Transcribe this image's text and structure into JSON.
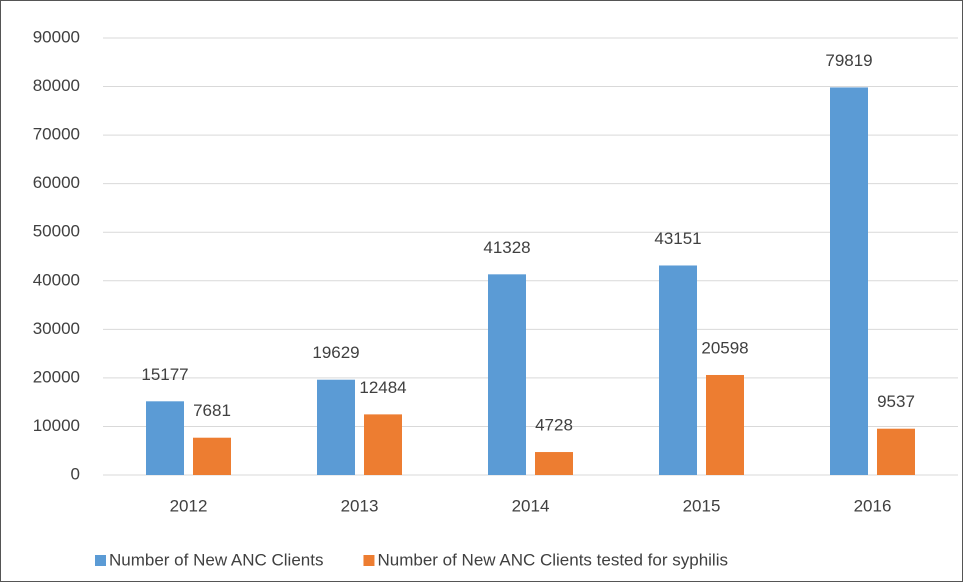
{
  "chart_data": {
    "type": "bar",
    "categories": [
      "2012",
      "2013",
      "2014",
      "2015",
      "2016"
    ],
    "series": [
      {
        "name": "Number of New ANC Clients",
        "color": "#5b9bd5",
        "values": [
          15177,
          19629,
          41328,
          43151,
          79819
        ]
      },
      {
        "name": "Number of New ANC Clients tested for syphilis",
        "color": "#ed7d31",
        "values": [
          7681,
          12484,
          4728,
          20598,
          9537
        ]
      }
    ],
    "ylim": [
      0,
      90000
    ],
    "yticks": [
      0,
      10000,
      20000,
      30000,
      40000,
      50000,
      60000,
      70000,
      80000,
      90000
    ],
    "grid": true,
    "legend": "bottom"
  }
}
